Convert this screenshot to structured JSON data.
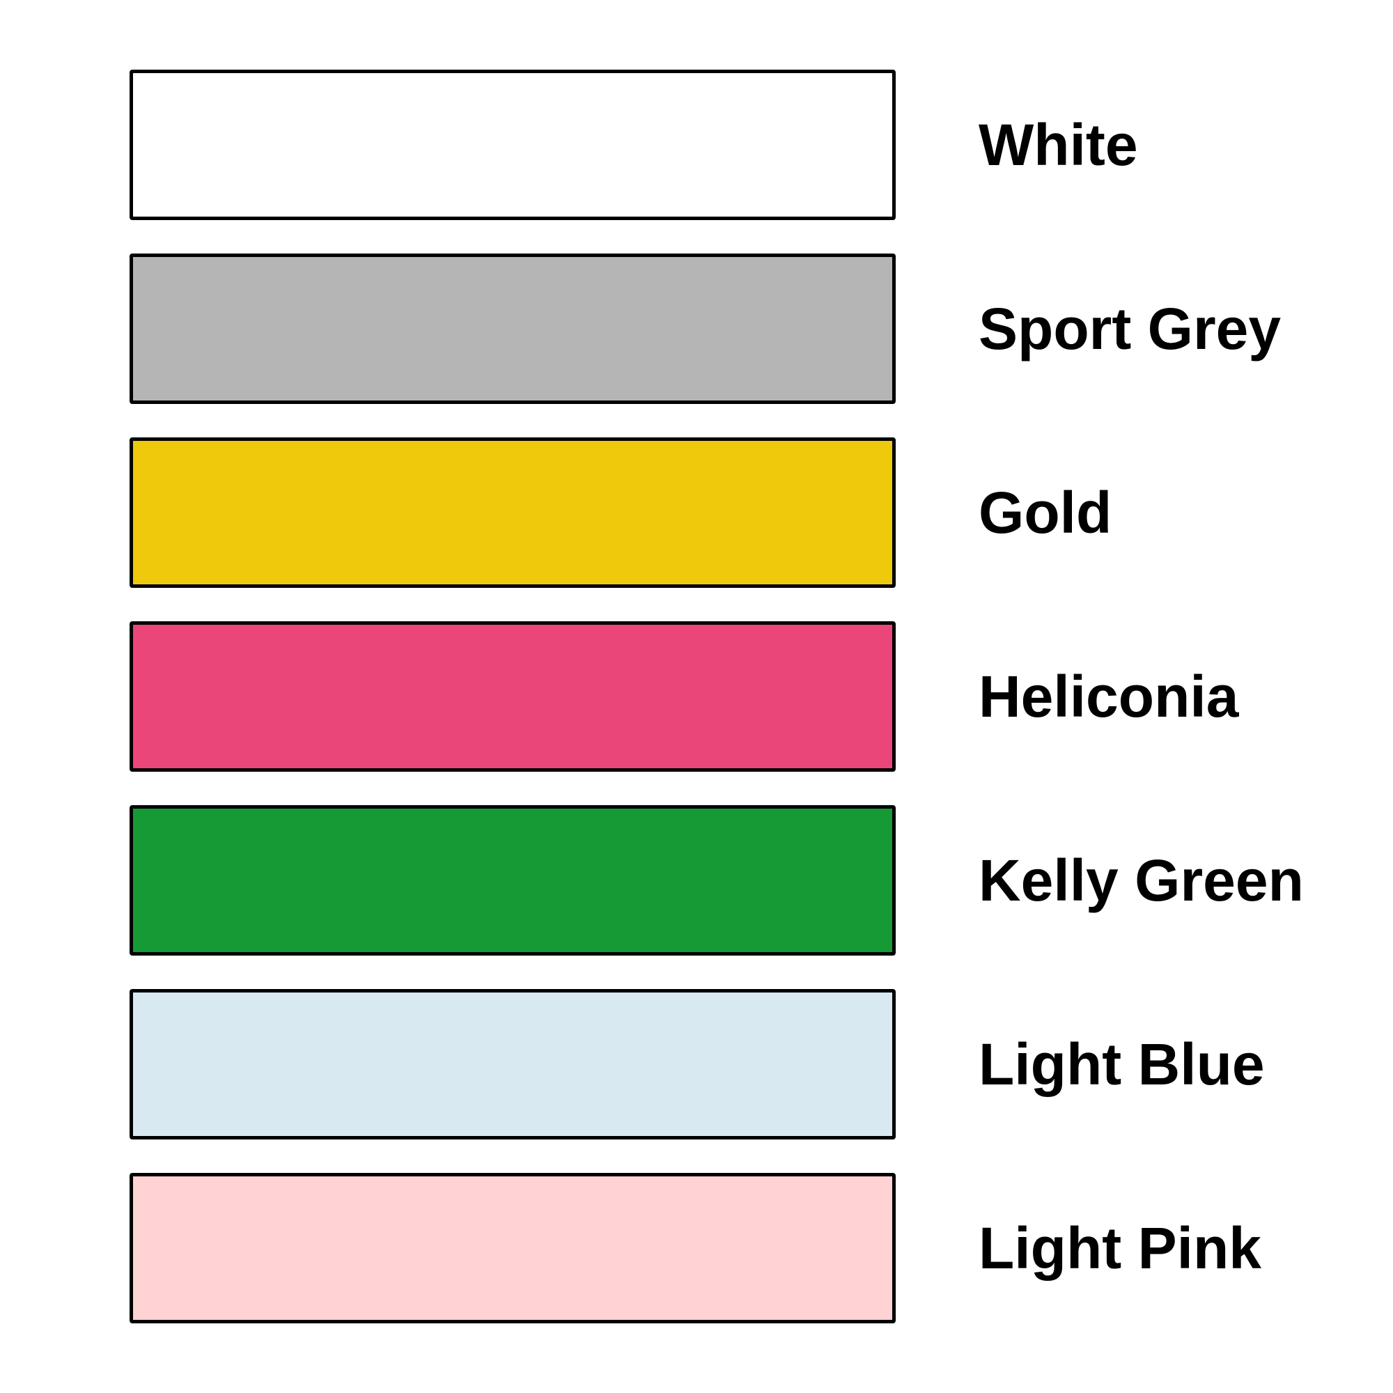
{
  "page": {
    "background_color": "#ffffff",
    "swatch_border_color": "#000000",
    "label_text_color": "#000000"
  },
  "swatches": [
    {
      "label": "White",
      "color": "#ffffff"
    },
    {
      "label": "Sport Grey",
      "color": "#b5b5b5"
    },
    {
      "label": "Gold",
      "color": "#eec90c"
    },
    {
      "label": "Heliconia",
      "color": "#ea467a"
    },
    {
      "label": "Kelly Green",
      "color": "#169a35"
    },
    {
      "label": "Light Blue",
      "color": "#d8e9f2"
    },
    {
      "label": "Light Pink",
      "color": "#ffd2d4"
    }
  ]
}
